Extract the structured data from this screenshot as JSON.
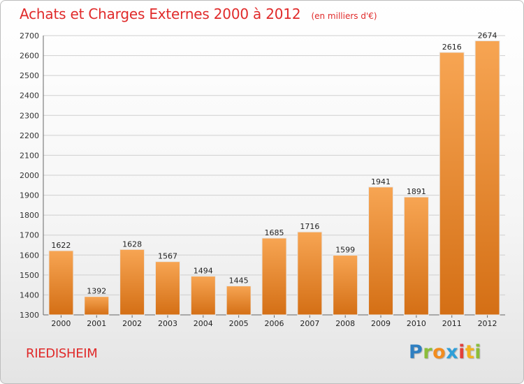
{
  "title": "Achats et Charges Externes 2000 à 2012",
  "subtitle": "(en milliers d'€)",
  "location": "RIEDISHEIM",
  "logo": {
    "letters": [
      "P",
      "r",
      "o",
      "x",
      "i",
      "t",
      "i"
    ],
    "colors": [
      "#2f7fc1",
      "#8bbd3a",
      "#f28c1e",
      "#2f9fd8",
      "#e2403a",
      "#f2b31e",
      "#8bbd3a"
    ]
  },
  "colors": {
    "title": "#e02a2a",
    "bar_light": "#f7a553",
    "bar_dark": "#d46f15",
    "grid": "#cfcfcf"
  },
  "chart_data": {
    "type": "bar",
    "categories": [
      "2000",
      "2001",
      "2002",
      "2003",
      "2004",
      "2005",
      "2006",
      "2007",
      "2008",
      "2009",
      "2010",
      "2011",
      "2012"
    ],
    "values": [
      1622,
      1392,
      1628,
      1567,
      1494,
      1445,
      1685,
      1716,
      1599,
      1941,
      1891,
      2616,
      2674
    ],
    "ylim": [
      1300,
      2700
    ],
    "yticks": [
      1300,
      1400,
      1500,
      1600,
      1700,
      1800,
      1900,
      2000,
      2100,
      2200,
      2300,
      2400,
      2500,
      2600,
      2700
    ],
    "grid": true,
    "data_labels": true
  }
}
